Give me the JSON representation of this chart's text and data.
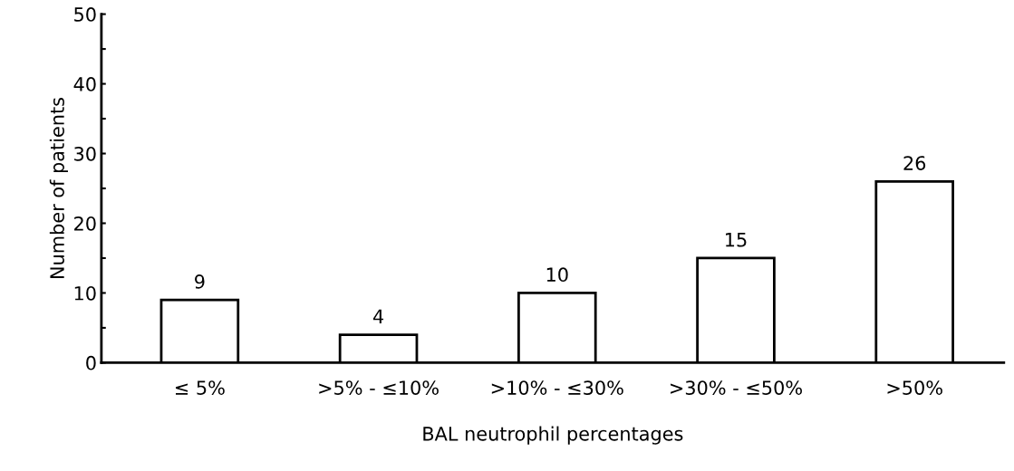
{
  "chart_data": {
    "type": "bar",
    "xlabel": "BAL neutrophil percentages",
    "ylabel": "Number of patients",
    "categories": [
      "≤ 5%",
      ">5% - ≤10%",
      ">10% - ≤30%",
      ">30% - ≤50%",
      ">50%"
    ],
    "values": [
      9,
      4,
      10,
      15,
      26
    ],
    "color": "#ffffff",
    "data_labels": true,
    "ylim": [
      0,
      50
    ],
    "yticks": [
      0,
      {
        "value": 5,
        "label": null
      },
      10,
      {
        "value": 15,
        "label": null
      },
      20,
      {
        "value": 25,
        "label": null
      },
      30,
      {
        "value": 35,
        "label": null
      },
      40,
      {
        "value": 45,
        "label": null
      },
      50
    ],
    "grid": false,
    "legend": false
  }
}
